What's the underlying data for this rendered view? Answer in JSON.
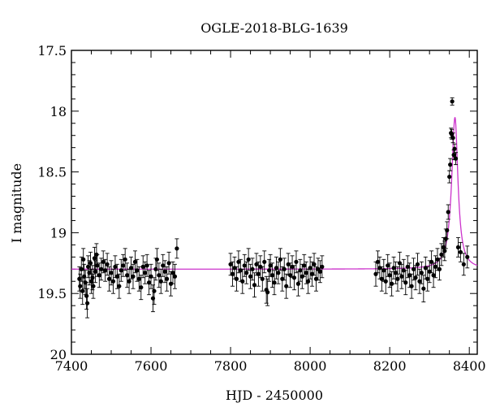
{
  "chart_data": {
    "type": "scatter",
    "title": "OGLE-2018-BLG-1639",
    "xlabel": "HJD - 2450000",
    "ylabel": "I magnitude",
    "xlim": [
      7400,
      8420
    ],
    "ylim": [
      20,
      17.5
    ],
    "y_inverted": true,
    "grid": false,
    "x_ticks": [
      7400,
      7600,
      7800,
      8000,
      8200,
      8400
    ],
    "y_ticks": [
      17.5,
      18,
      18.5,
      19,
      19.5,
      20
    ],
    "x_tick_labels": [
      "7400",
      "7600",
      "7800",
      "8000",
      "8200",
      "8400"
    ],
    "y_tick_labels": [
      "17.5",
      "18",
      "18.5",
      "19",
      "19.5",
      "20"
    ],
    "colors": {
      "points": "#000000",
      "model": "#cc33cc"
    },
    "model": {
      "baseline": 19.3,
      "peak_mag": 18.05,
      "peak_time": 8364,
      "rise_width": 10,
      "fall_width": 9
    },
    "series": [
      {
        "type": "scatter",
        "points": [
          [
            7420,
            19.38,
            0.1
          ],
          [
            7422,
            19.44,
            0.1
          ],
          [
            7425,
            19.3,
            0.1
          ],
          [
            7428,
            19.48,
            0.11
          ],
          [
            7430,
            19.22,
            0.09
          ],
          [
            7432,
            19.36,
            0.1
          ],
          [
            7435,
            19.41,
            0.1
          ],
          [
            7438,
            19.52,
            0.11
          ],
          [
            7440,
            19.58,
            0.12
          ],
          [
            7442,
            19.28,
            0.09
          ],
          [
            7445,
            19.33,
            0.1
          ],
          [
            7448,
            19.25,
            0.09
          ],
          [
            7450,
            19.4,
            0.1
          ],
          [
            7453,
            19.37,
            0.1
          ],
          [
            7455,
            19.44,
            0.1
          ],
          [
            7458,
            19.21,
            0.09
          ],
          [
            7460,
            19.32,
            0.09
          ],
          [
            7463,
            19.18,
            0.09
          ],
          [
            7465,
            19.27,
            0.09
          ],
          [
            7470,
            19.35,
            0.1
          ],
          [
            7475,
            19.3,
            0.09
          ],
          [
            7480,
            19.24,
            0.09
          ],
          [
            7485,
            19.31,
            0.09
          ],
          [
            7490,
            19.26,
            0.09
          ],
          [
            7495,
            19.38,
            0.1
          ],
          [
            7500,
            19.33,
            0.1
          ],
          [
            7505,
            19.4,
            0.1
          ],
          [
            7510,
            19.28,
            0.09
          ],
          [
            7515,
            19.36,
            0.1
          ],
          [
            7520,
            19.44,
            0.1
          ],
          [
            7525,
            19.31,
            0.09
          ],
          [
            7530,
            19.27,
            0.09
          ],
          [
            7535,
            19.22,
            0.09
          ],
          [
            7540,
            19.35,
            0.1
          ],
          [
            7545,
            19.4,
            0.1
          ],
          [
            7550,
            19.29,
            0.09
          ],
          [
            7555,
            19.36,
            0.1
          ],
          [
            7560,
            19.24,
            0.09
          ],
          [
            7565,
            19.31,
            0.09
          ],
          [
            7570,
            19.38,
            0.1
          ],
          [
            7575,
            19.45,
            0.1
          ],
          [
            7580,
            19.28,
            0.09
          ],
          [
            7585,
            19.33,
            0.09
          ],
          [
            7590,
            19.27,
            0.09
          ],
          [
            7595,
            19.41,
            0.1
          ],
          [
            7600,
            19.36,
            0.1
          ],
          [
            7605,
            19.54,
            0.11
          ],
          [
            7608,
            19.48,
            0.11
          ],
          [
            7612,
            19.3,
            0.09
          ],
          [
            7615,
            19.22,
            0.09
          ],
          [
            7620,
            19.35,
            0.1
          ],
          [
            7625,
            19.4,
            0.1
          ],
          [
            7630,
            19.27,
            0.09
          ],
          [
            7635,
            19.32,
            0.09
          ],
          [
            7640,
            19.38,
            0.1
          ],
          [
            7645,
            19.25,
            0.09
          ],
          [
            7650,
            19.42,
            0.1
          ],
          [
            7655,
            19.33,
            0.09
          ],
          [
            7660,
            19.36,
            0.1
          ],
          [
            7665,
            19.13,
            0.08
          ],
          [
            7800,
            19.26,
            0.09
          ],
          [
            7805,
            19.34,
            0.1
          ],
          [
            7810,
            19.29,
            0.09
          ],
          [
            7815,
            19.38,
            0.1
          ],
          [
            7820,
            19.24,
            0.09
          ],
          [
            7825,
            19.31,
            0.09
          ],
          [
            7830,
            19.4,
            0.1
          ],
          [
            7835,
            19.27,
            0.09
          ],
          [
            7840,
            19.33,
            0.09
          ],
          [
            7845,
            19.22,
            0.09
          ],
          [
            7850,
            19.36,
            0.1
          ],
          [
            7855,
            19.3,
            0.09
          ],
          [
            7860,
            19.43,
            0.1
          ],
          [
            7865,
            19.26,
            0.09
          ],
          [
            7870,
            19.34,
            0.1
          ],
          [
            7875,
            19.28,
            0.09
          ],
          [
            7880,
            19.38,
            0.1
          ],
          [
            7885,
            19.24,
            0.09
          ],
          [
            7890,
            19.47,
            0.11
          ],
          [
            7893,
            19.49,
            0.11
          ],
          [
            7897,
            19.31,
            0.09
          ],
          [
            7900,
            19.27,
            0.09
          ],
          [
            7905,
            19.35,
            0.1
          ],
          [
            7910,
            19.41,
            0.1
          ],
          [
            7915,
            19.29,
            0.09
          ],
          [
            7920,
            19.33,
            0.09
          ],
          [
            7925,
            19.22,
            0.09
          ],
          [
            7930,
            19.38,
            0.1
          ],
          [
            7935,
            19.3,
            0.09
          ],
          [
            7940,
            19.44,
            0.1
          ],
          [
            7945,
            19.26,
            0.09
          ],
          [
            7950,
            19.35,
            0.1
          ],
          [
            7955,
            19.28,
            0.09
          ],
          [
            7960,
            19.37,
            0.1
          ],
          [
            7965,
            19.24,
            0.09
          ],
          [
            7970,
            19.42,
            0.1
          ],
          [
            7975,
            19.31,
            0.09
          ],
          [
            7980,
            19.36,
            0.1
          ],
          [
            7985,
            19.27,
            0.09
          ],
          [
            7990,
            19.33,
            0.09
          ],
          [
            7995,
            19.4,
            0.1
          ],
          [
            8000,
            19.29,
            0.09
          ],
          [
            8005,
            19.34,
            0.1
          ],
          [
            8010,
            19.26,
            0.09
          ],
          [
            8015,
            19.38,
            0.1
          ],
          [
            8020,
            19.3,
            0.09
          ],
          [
            8025,
            19.32,
            0.09
          ],
          [
            8030,
            19.28,
            0.09
          ],
          [
            8165,
            19.34,
            0.1
          ],
          [
            8170,
            19.24,
            0.09
          ],
          [
            8175,
            19.29,
            0.09
          ],
          [
            8180,
            19.38,
            0.1
          ],
          [
            8185,
            19.31,
            0.09
          ],
          [
            8190,
            19.4,
            0.1
          ],
          [
            8195,
            19.27,
            0.09
          ],
          [
            8200,
            19.35,
            0.1
          ],
          [
            8205,
            19.42,
            0.1
          ],
          [
            8210,
            19.29,
            0.09
          ],
          [
            8215,
            19.33,
            0.09
          ],
          [
            8220,
            19.38,
            0.1
          ],
          [
            8225,
            19.25,
            0.09
          ],
          [
            8230,
            19.36,
            0.1
          ],
          [
            8235,
            19.31,
            0.09
          ],
          [
            8240,
            19.41,
            0.1
          ],
          [
            8245,
            19.28,
            0.09
          ],
          [
            8250,
            19.35,
            0.1
          ],
          [
            8255,
            19.44,
            0.1
          ],
          [
            8260,
            19.3,
            0.09
          ],
          [
            8265,
            19.37,
            0.1
          ],
          [
            8270,
            19.26,
            0.09
          ],
          [
            8275,
            19.4,
            0.1
          ],
          [
            8280,
            19.33,
            0.09
          ],
          [
            8285,
            19.46,
            0.11
          ],
          [
            8290,
            19.29,
            0.09
          ],
          [
            8295,
            19.38,
            0.1
          ],
          [
            8300,
            19.32,
            0.09
          ],
          [
            8305,
            19.24,
            0.09
          ],
          [
            8310,
            19.35,
            0.1
          ],
          [
            8315,
            19.28,
            0.09
          ],
          [
            8320,
            19.22,
            0.09
          ],
          [
            8325,
            19.3,
            0.09
          ],
          [
            8330,
            19.18,
            0.09
          ],
          [
            8335,
            19.12,
            0.08
          ],
          [
            8338,
            19.15,
            0.08
          ],
          [
            8341,
            19.05,
            0.08
          ],
          [
            8344,
            18.98,
            0.07
          ],
          [
            8347,
            18.83,
            0.06
          ],
          [
            8350,
            18.54,
            0.05
          ],
          [
            8352,
            18.44,
            0.05
          ],
          [
            8354,
            18.18,
            0.04
          ],
          [
            8356,
            18.19,
            0.04
          ],
          [
            8357,
            17.92,
            0.03
          ],
          [
            8359,
            18.22,
            0.04
          ],
          [
            8361,
            18.36,
            0.04
          ],
          [
            8363,
            18.31,
            0.04
          ],
          [
            8366,
            18.39,
            0.05
          ],
          [
            8372,
            19.12,
            0.08
          ],
          [
            8378,
            19.16,
            0.08
          ],
          [
            8386,
            19.26,
            0.09
          ],
          [
            8395,
            19.2,
            0.09
          ]
        ]
      }
    ]
  }
}
